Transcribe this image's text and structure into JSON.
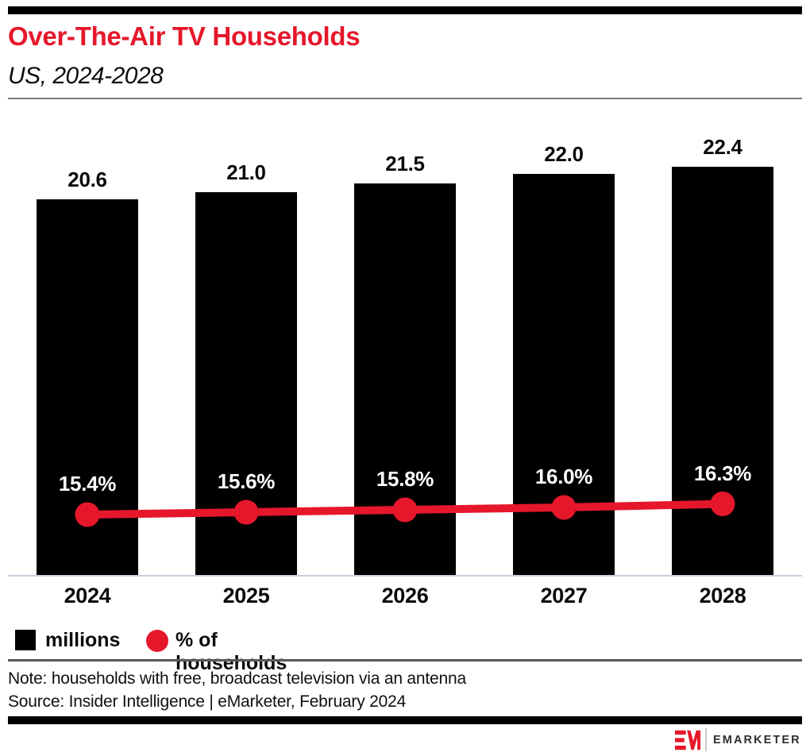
{
  "header": {
    "title": "Over-The-Air TV Households",
    "subtitle": "US, 2024-2028"
  },
  "chart_data": {
    "type": "bar",
    "categories": [
      "2024",
      "2025",
      "2026",
      "2027",
      "2028"
    ],
    "series": [
      {
        "name": "millions",
        "type": "bar",
        "color": "#000000",
        "values": [
          20.6,
          21.0,
          21.5,
          22.0,
          22.4
        ],
        "labels": [
          "20.6",
          "21.0",
          "21.5",
          "22.0",
          "22.4"
        ]
      },
      {
        "name": "% of households",
        "type": "line",
        "color": "#e6172b",
        "values": [
          15.4,
          15.6,
          15.8,
          16.0,
          16.3
        ],
        "labels": [
          "15.4%",
          "15.6%",
          "15.8%",
          "16.0%",
          "16.3%"
        ]
      }
    ],
    "title": "Over-The-Air TV Households",
    "subtitle": "US, 2024-2028",
    "xlabel": "",
    "ylabel": "",
    "ylim": [
      0,
      24
    ],
    "grid": false,
    "legend_position": "bottom",
    "value_labels_shown": true
  },
  "legend": {
    "items": [
      {
        "label": "millions",
        "swatch": "square",
        "color": "#000000"
      },
      {
        "label": "% of households",
        "swatch": "circle",
        "color": "#e6172b"
      }
    ]
  },
  "footer": {
    "note": "Note: households with free, broadcast television via an antenna",
    "source": "Source: Insider Intelligence | eMarketer, February 2024",
    "logo_mark": "EM",
    "logo_text": "EMARKETER"
  },
  "colors": {
    "accent_red": "#e6172b",
    "bar_black": "#000000",
    "axis_gray": "#c7cfdd",
    "rule_gray": "#7d7d7d"
  }
}
